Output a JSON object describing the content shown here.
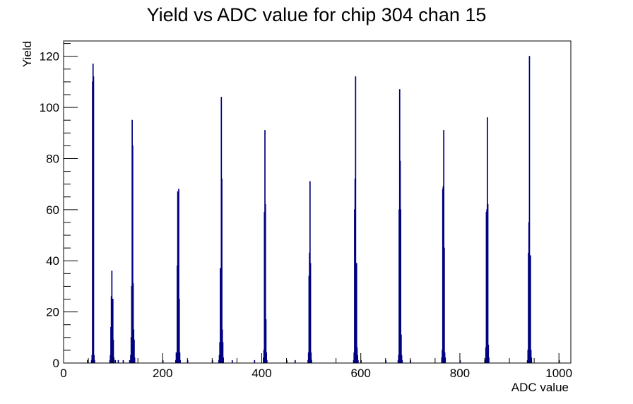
{
  "chart_data": {
    "type": "histogram",
    "title": "Yield vs ADC value for chip 304 chan 15",
    "xlabel": "ADC value",
    "ylabel": "Yield",
    "xlim": [
      0,
      1024
    ],
    "ylim": [
      0,
      126
    ],
    "x_ticks": [
      0,
      200,
      400,
      600,
      800,
      1000
    ],
    "y_ticks": [
      0,
      20,
      40,
      60,
      80,
      100,
      120
    ],
    "grid": false,
    "bar_color": "#000080",
    "bins": [
      {
        "x": 48,
        "y": 1
      },
      {
        "x": 56,
        "y": 1
      },
      {
        "x": 57,
        "y": 3
      },
      {
        "x": 58,
        "y": 110
      },
      {
        "x": 59,
        "y": 117
      },
      {
        "x": 60,
        "y": 112
      },
      {
        "x": 61,
        "y": 3
      },
      {
        "x": 62,
        "y": 1
      },
      {
        "x": 93,
        "y": 1
      },
      {
        "x": 94,
        "y": 3
      },
      {
        "x": 95,
        "y": 14
      },
      {
        "x": 96,
        "y": 26
      },
      {
        "x": 97,
        "y": 36
      },
      {
        "x": 98,
        "y": 19
      },
      {
        "x": 99,
        "y": 25
      },
      {
        "x": 100,
        "y": 9
      },
      {
        "x": 101,
        "y": 2
      },
      {
        "x": 104,
        "y": 1
      },
      {
        "x": 110,
        "y": 1
      },
      {
        "x": 120,
        "y": 1
      },
      {
        "x": 133,
        "y": 1
      },
      {
        "x": 135,
        "y": 3
      },
      {
        "x": 136,
        "y": 10
      },
      {
        "x": 137,
        "y": 30
      },
      {
        "x": 138,
        "y": 95
      },
      {
        "x": 139,
        "y": 85
      },
      {
        "x": 140,
        "y": 31
      },
      {
        "x": 141,
        "y": 13
      },
      {
        "x": 142,
        "y": 9
      },
      {
        "x": 143,
        "y": 2
      },
      {
        "x": 200,
        "y": 1
      },
      {
        "x": 226,
        "y": 1
      },
      {
        "x": 227,
        "y": 4
      },
      {
        "x": 228,
        "y": 3
      },
      {
        "x": 229,
        "y": 38
      },
      {
        "x": 230,
        "y": 67
      },
      {
        "x": 231,
        "y": 66
      },
      {
        "x": 232,
        "y": 68
      },
      {
        "x": 233,
        "y": 25
      },
      {
        "x": 234,
        "y": 4
      },
      {
        "x": 235,
        "y": 1
      },
      {
        "x": 250,
        "y": 1
      },
      {
        "x": 300,
        "y": 1
      },
      {
        "x": 313,
        "y": 1
      },
      {
        "x": 314,
        "y": 3
      },
      {
        "x": 315,
        "y": 8
      },
      {
        "x": 316,
        "y": 37
      },
      {
        "x": 317,
        "y": 22
      },
      {
        "x": 318,
        "y": 104
      },
      {
        "x": 319,
        "y": 72
      },
      {
        "x": 320,
        "y": 13
      },
      {
        "x": 321,
        "y": 8
      },
      {
        "x": 322,
        "y": 2
      },
      {
        "x": 340,
        "y": 1
      },
      {
        "x": 385,
        "y": 1
      },
      {
        "x": 403,
        "y": 2
      },
      {
        "x": 404,
        "y": 5
      },
      {
        "x": 405,
        "y": 59
      },
      {
        "x": 406,
        "y": 91
      },
      {
        "x": 407,
        "y": 62
      },
      {
        "x": 408,
        "y": 17
      },
      {
        "x": 409,
        "y": 4
      },
      {
        "x": 410,
        "y": 1
      },
      {
        "x": 450,
        "y": 1
      },
      {
        "x": 467,
        "y": 1
      },
      {
        "x": 493,
        "y": 1
      },
      {
        "x": 494,
        "y": 4
      },
      {
        "x": 495,
        "y": 34
      },
      {
        "x": 496,
        "y": 43
      },
      {
        "x": 497,
        "y": 71
      },
      {
        "x": 498,
        "y": 39
      },
      {
        "x": 499,
        "y": 4
      },
      {
        "x": 500,
        "y": 1
      },
      {
        "x": 585,
        "y": 1
      },
      {
        "x": 586,
        "y": 4
      },
      {
        "x": 587,
        "y": 60
      },
      {
        "x": 588,
        "y": 72
      },
      {
        "x": 589,
        "y": 112
      },
      {
        "x": 590,
        "y": 34
      },
      {
        "x": 591,
        "y": 39
      },
      {
        "x": 592,
        "y": 6
      },
      {
        "x": 593,
        "y": 3
      },
      {
        "x": 594,
        "y": 1
      },
      {
        "x": 600,
        "y": 1
      },
      {
        "x": 650,
        "y": 1
      },
      {
        "x": 675,
        "y": 1
      },
      {
        "x": 676,
        "y": 3
      },
      {
        "x": 677,
        "y": 60
      },
      {
        "x": 678,
        "y": 107
      },
      {
        "x": 679,
        "y": 79
      },
      {
        "x": 680,
        "y": 60
      },
      {
        "x": 681,
        "y": 11
      },
      {
        "x": 682,
        "y": 3
      },
      {
        "x": 683,
        "y": 1
      },
      {
        "x": 700,
        "y": 1
      },
      {
        "x": 763,
        "y": 2
      },
      {
        "x": 764,
        "y": 5
      },
      {
        "x": 765,
        "y": 68
      },
      {
        "x": 766,
        "y": 69
      },
      {
        "x": 767,
        "y": 91
      },
      {
        "x": 768,
        "y": 45
      },
      {
        "x": 769,
        "y": 4
      },
      {
        "x": 770,
        "y": 2
      },
      {
        "x": 800,
        "y": 1
      },
      {
        "x": 850,
        "y": 1
      },
      {
        "x": 851,
        "y": 1
      },
      {
        "x": 852,
        "y": 6
      },
      {
        "x": 853,
        "y": 59
      },
      {
        "x": 854,
        "y": 60
      },
      {
        "x": 855,
        "y": 96
      },
      {
        "x": 856,
        "y": 62
      },
      {
        "x": 857,
        "y": 7
      },
      {
        "x": 858,
        "y": 2
      },
      {
        "x": 936,
        "y": 1
      },
      {
        "x": 937,
        "y": 5
      },
      {
        "x": 938,
        "y": 43
      },
      {
        "x": 939,
        "y": 55
      },
      {
        "x": 940,
        "y": 120
      },
      {
        "x": 941,
        "y": 42
      },
      {
        "x": 942,
        "y": 42
      },
      {
        "x": 943,
        "y": 5
      },
      {
        "x": 944,
        "y": 2
      },
      {
        "x": 1000,
        "y": 1
      }
    ]
  }
}
